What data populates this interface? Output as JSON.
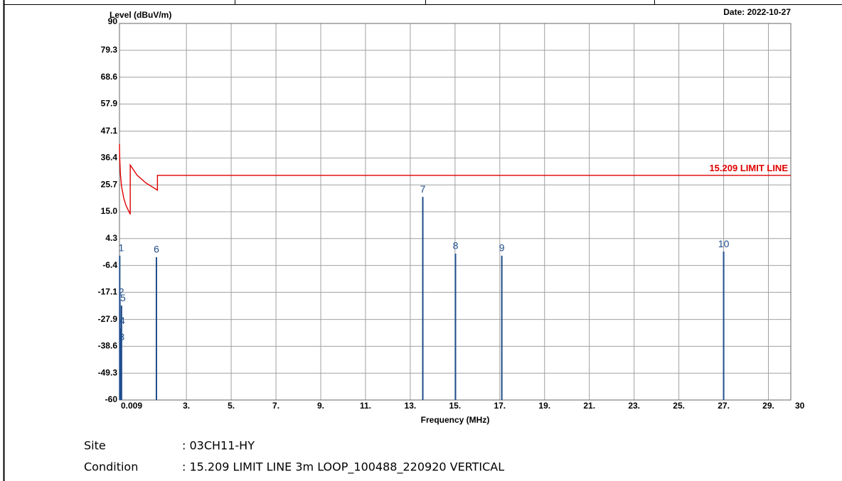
{
  "chart_data": {
    "type": "line",
    "y_label": "Level (dBuV/m)",
    "date": "Date: 2022-10-27",
    "x_label": "Frequency (MHz)",
    "xlim": [
      0.009,
      30
    ],
    "ylim": [
      -60,
      90
    ],
    "xticks": [
      {
        "value": 0.009,
        "label": "0.009"
      },
      {
        "value": 3,
        "label": "3."
      },
      {
        "value": 5,
        "label": "5."
      },
      {
        "value": 7,
        "label": "7."
      },
      {
        "value": 9,
        "label": "9."
      },
      {
        "value": 11,
        "label": "11."
      },
      {
        "value": 13,
        "label": "13."
      },
      {
        "value": 15,
        "label": "15."
      },
      {
        "value": 17,
        "label": "17."
      },
      {
        "value": 19,
        "label": "19."
      },
      {
        "value": 21,
        "label": "21."
      },
      {
        "value": 23,
        "label": "23."
      },
      {
        "value": 25,
        "label": "25."
      },
      {
        "value": 27,
        "label": "27."
      },
      {
        "value": 29,
        "label": "29."
      },
      30
    ],
    "yticks": [
      -60,
      -49.3,
      -38.6,
      -27.9,
      -17.1,
      -6.4,
      4.3,
      {
        "value": 15,
        "label": "15.0"
      },
      25.7,
      36.4,
      47.1,
      57.9,
      68.6,
      79.3,
      90
    ],
    "grid": true,
    "series": [
      {
        "name": "15.209 LIMIT LINE",
        "color": "#e00000",
        "x": [
          0.009,
          0.02,
          0.05,
          0.1,
          0.2,
          0.3,
          0.49,
          0.49,
          0.8,
          1.2,
          1.705,
          1.705,
          30
        ],
        "values": [
          42,
          36.4,
          30,
          25.2,
          20.4,
          17.5,
          14,
          33.6,
          29.5,
          26.4,
          23.6,
          29.5,
          29.5
        ]
      }
    ],
    "markers": {
      "color": "#1f4e8c",
      "labels": [
        "1",
        "2",
        "3",
        "4",
        "5",
        "6",
        "7",
        "8",
        "9",
        "10"
      ],
      "x": [
        0.02,
        0.03,
        0.05,
        0.07,
        0.1,
        1.66,
        13.56,
        15.02,
        17.09,
        27.0
      ],
      "values": [
        -2.5,
        -20,
        -38,
        -31.5,
        -22.4,
        -3.1,
        20.9,
        -1.7,
        -2.5,
        -0.9
      ]
    }
  },
  "info": {
    "site_label": "Site",
    "site": ": 03CH11-HY",
    "condition_label": "Condition",
    "condition": ": 15.209 LIMIT LINE 3m LOOP_100488_220920 VERTICAL"
  }
}
